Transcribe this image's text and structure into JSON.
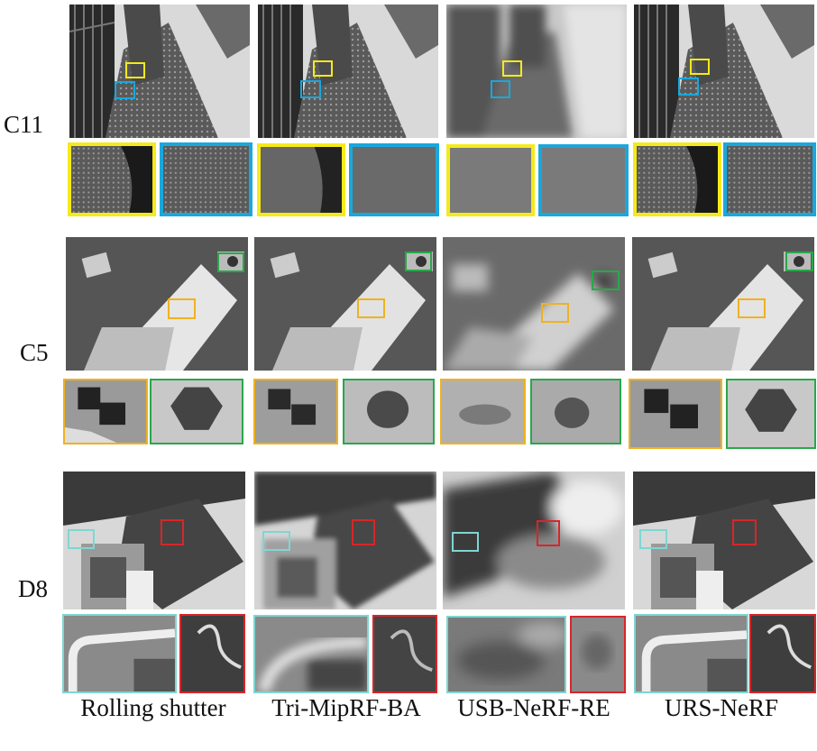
{
  "figure": {
    "columns": [
      {
        "id": "rs",
        "label": "Rolling shutter"
      },
      {
        "id": "tri",
        "label": "Tri-MipRF-BA"
      },
      {
        "id": "usb",
        "label": "USB-NeRF-RE"
      },
      {
        "id": "urs",
        "label": "URS-NeRF"
      }
    ],
    "rows": [
      {
        "id": "c11",
        "label": "C11",
        "box_colors": [
          "#f5ea1a",
          "#1aa7dc"
        ]
      },
      {
        "id": "c5",
        "label": "C5",
        "box_colors": [
          "#f0b21e",
          "#28a84a"
        ]
      },
      {
        "id": "d8",
        "label": "D8",
        "box_colors": [
          "#7fd6d2",
          "#d7262a"
        ]
      }
    ]
  }
}
